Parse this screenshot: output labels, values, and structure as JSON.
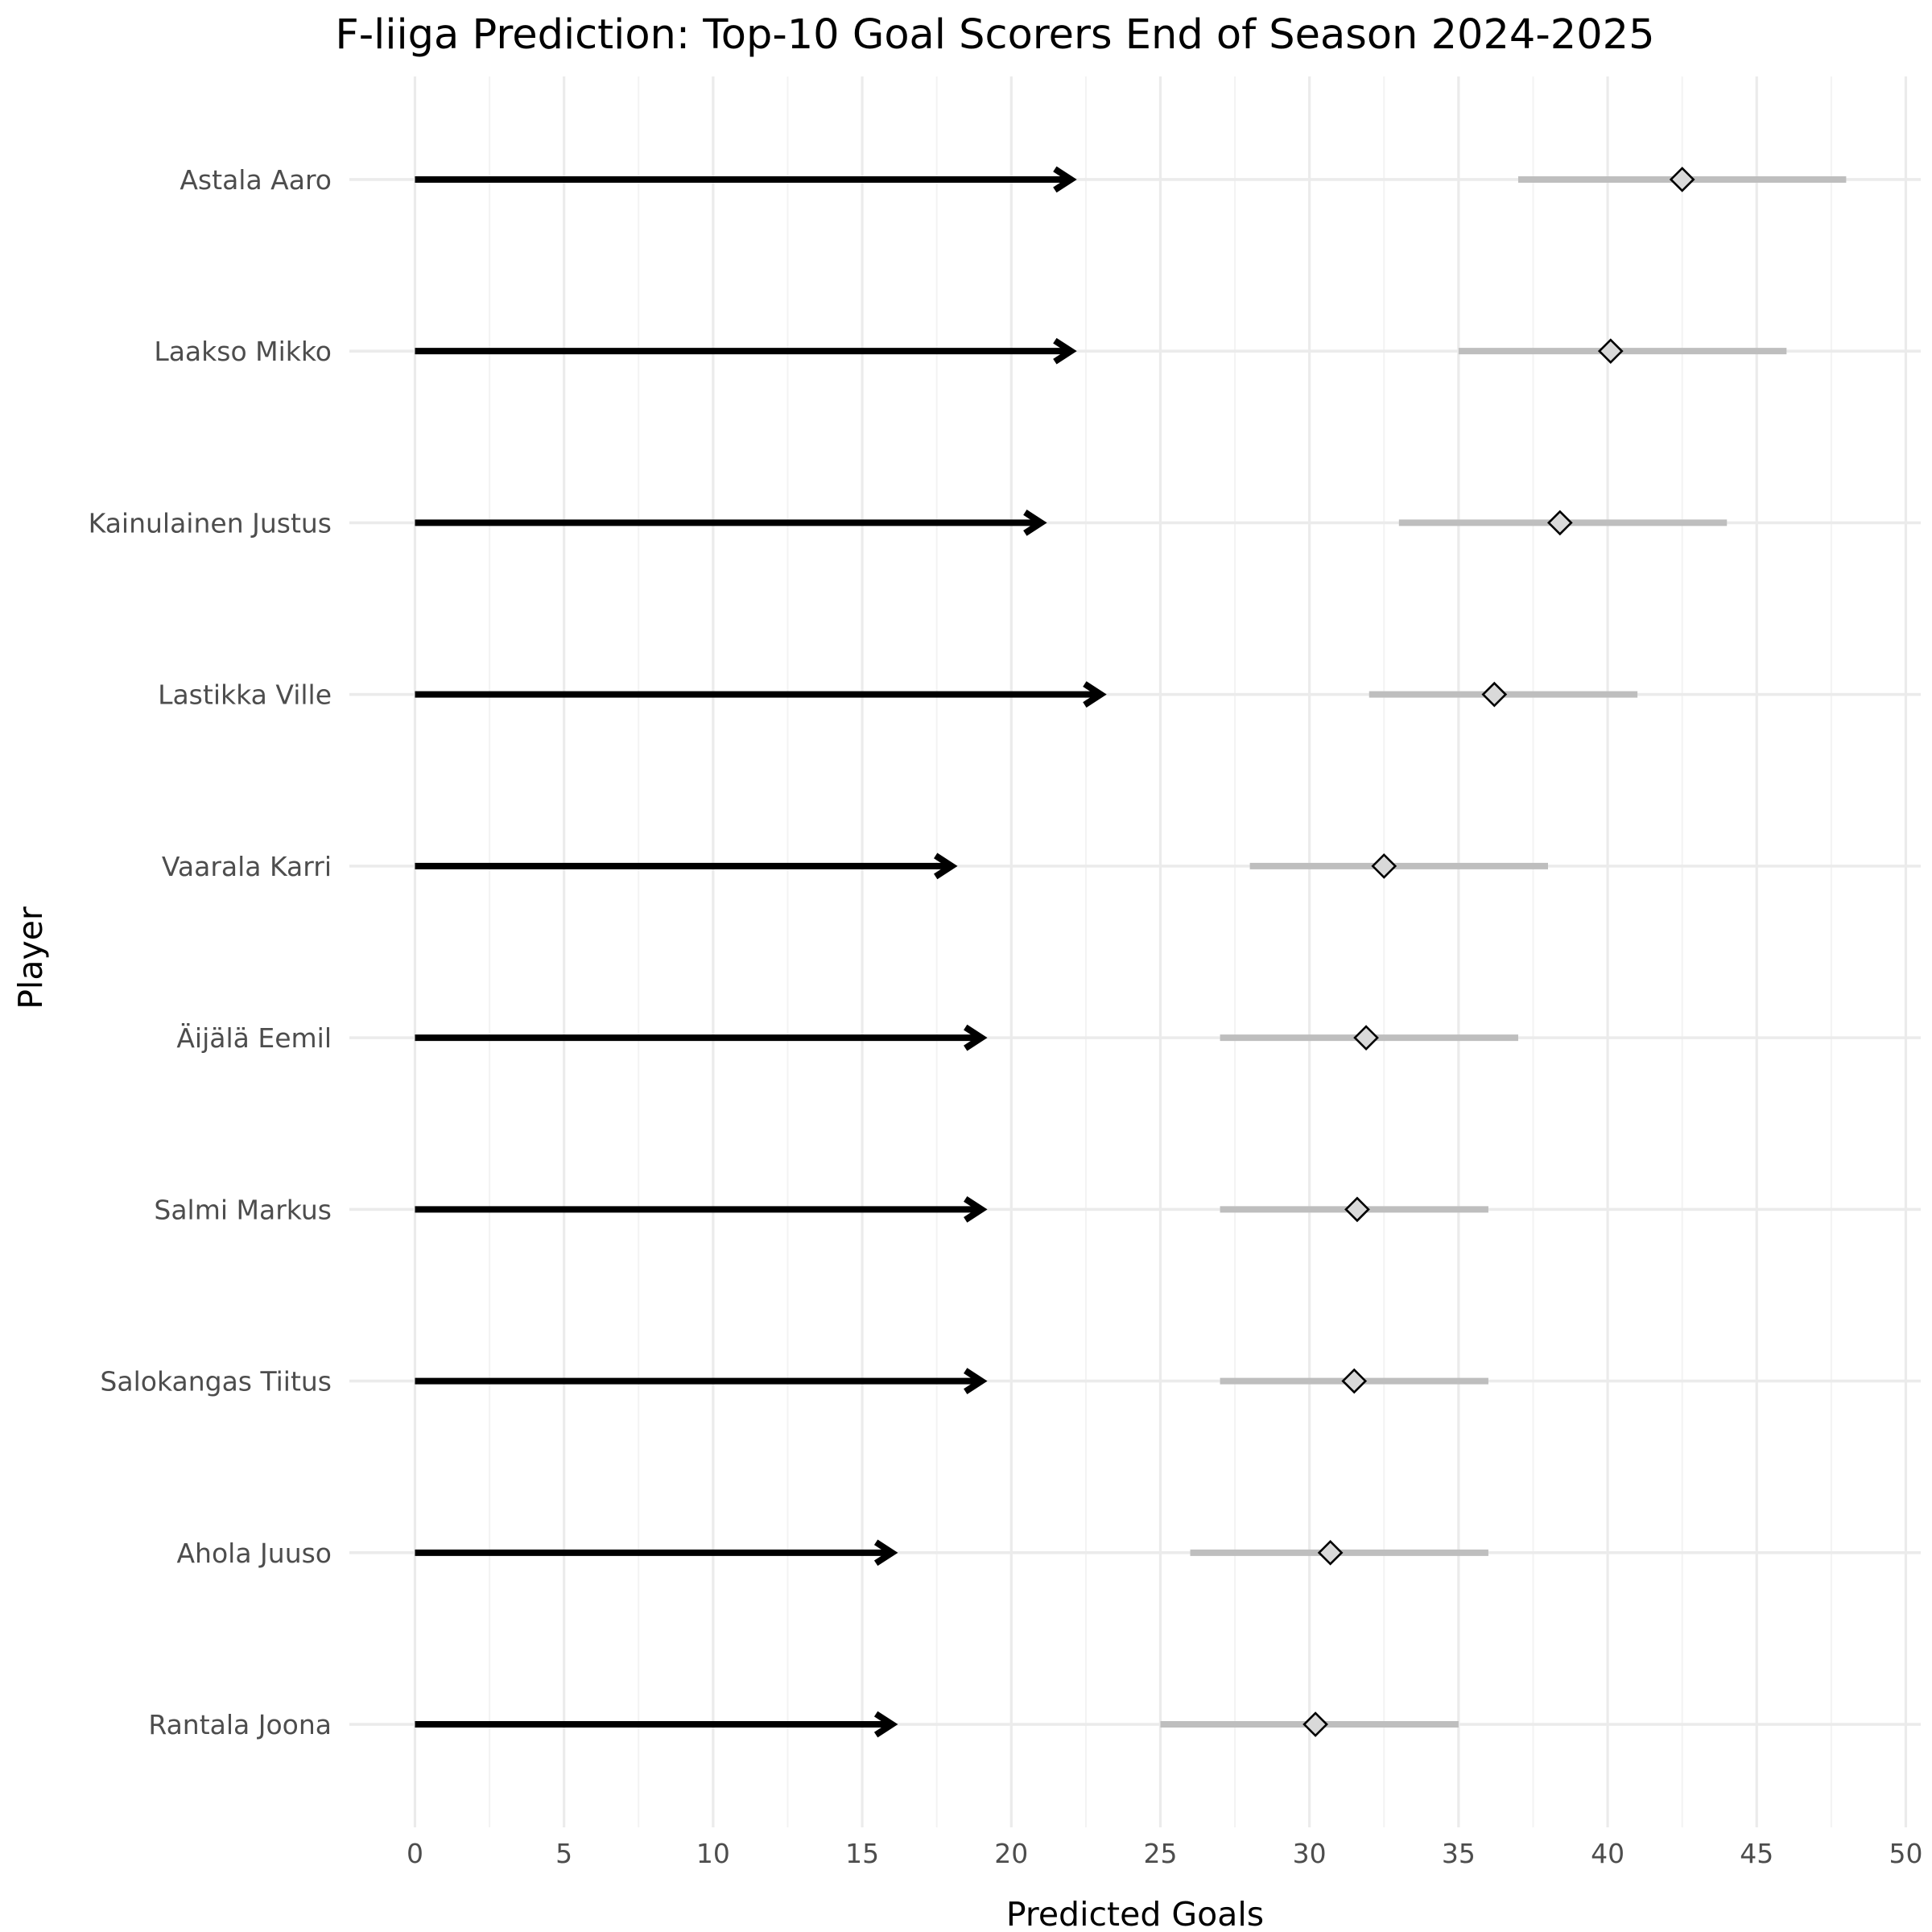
{
  "chart_data": {
    "type": "scatter",
    "title": "F-liiga Prediction: Top-10 Goal Scorers End of Season 2024-2025",
    "xlabel": "Predicted Goals",
    "ylabel": "Player",
    "xlim": [
      -2.2,
      50.5
    ],
    "xticks": [
      0,
      5,
      10,
      15,
      20,
      25,
      30,
      35,
      40,
      45,
      50
    ],
    "grid": true,
    "legend": "none",
    "colors": {
      "current_arrow": "#000000",
      "interval": "#bebebe",
      "marker_fill": "#d9d9d9",
      "marker_stroke": "#000000",
      "grid_major": "#ebebeb",
      "grid_minor": "#f3f3f3"
    },
    "players": [
      {
        "name": "Astala Aaro",
        "current": 22,
        "predicted": 42.5,
        "low": 37,
        "high": 48
      },
      {
        "name": "Laakso Mikko",
        "current": 22,
        "predicted": 40.1,
        "low": 35,
        "high": 46
      },
      {
        "name": "Kainulainen Justus",
        "current": 21,
        "predicted": 38.4,
        "low": 33,
        "high": 44
      },
      {
        "name": "Lastikka Ville",
        "current": 23,
        "predicted": 36.2,
        "low": 32,
        "high": 41
      },
      {
        "name": "Vaarala Karri",
        "current": 18,
        "predicted": 32.5,
        "low": 28,
        "high": 38
      },
      {
        "name": "Äijälä Eemil",
        "current": 19,
        "predicted": 31.9,
        "low": 27,
        "high": 37
      },
      {
        "name": "Salmi Markus",
        "current": 19,
        "predicted": 31.6,
        "low": 27,
        "high": 36
      },
      {
        "name": "Salokangas Tiitus",
        "current": 19,
        "predicted": 31.5,
        "low": 27,
        "high": 36
      },
      {
        "name": "Ahola Juuso",
        "current": 16,
        "predicted": 30.7,
        "low": 26,
        "high": 36
      },
      {
        "name": "Rantala Joona",
        "current": 16,
        "predicted": 30.2,
        "low": 25,
        "high": 35
      }
    ]
  }
}
